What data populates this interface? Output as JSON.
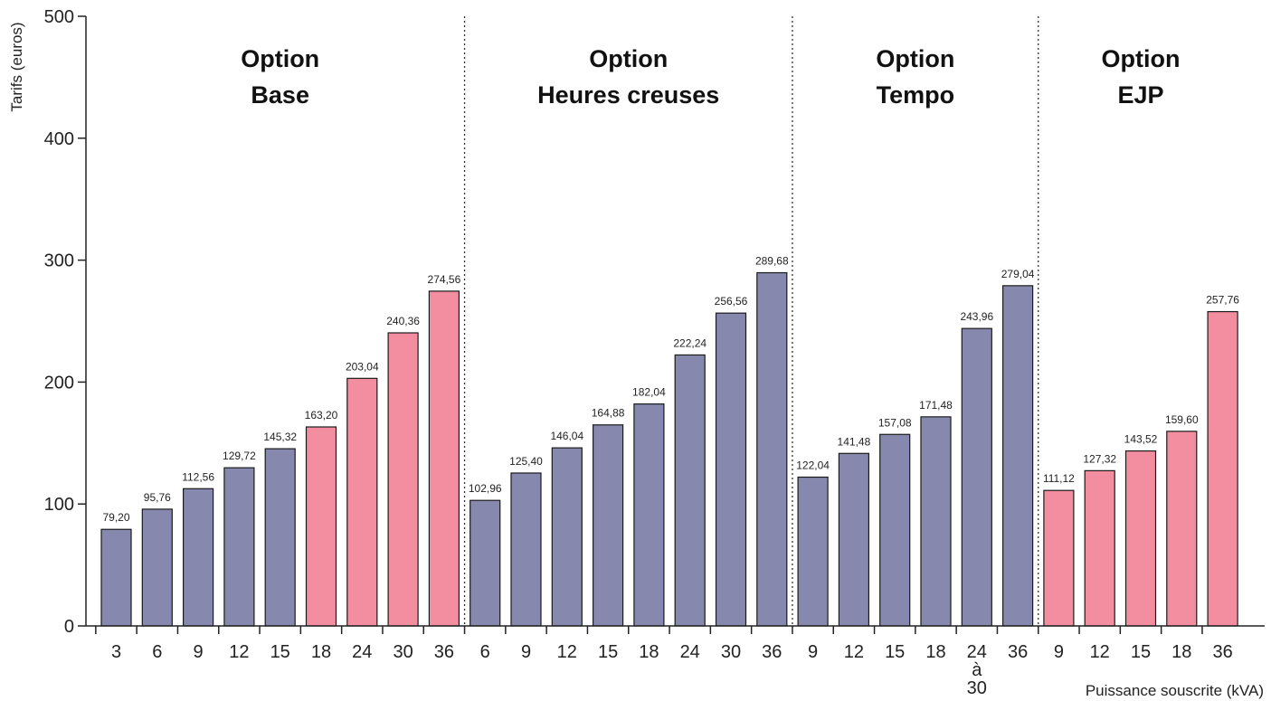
{
  "chart_data": {
    "type": "bar",
    "ylabel": "Tarifs (euros)",
    "xlabel": "Puissance souscrite (kVA)",
    "ylim": [
      0,
      500
    ],
    "yticks": [
      0,
      100,
      200,
      300,
      400,
      500
    ],
    "colors": {
      "blue": "#8689ad",
      "pink": "#f28ea0"
    },
    "groups": [
      {
        "title_line1": "Option",
        "title_line2": "Base",
        "bars": [
          {
            "label": "3",
            "value": 79.2,
            "value_label": "79,20",
            "color": "blue"
          },
          {
            "label": "6",
            "value": 95.76,
            "value_label": "95,76",
            "color": "blue"
          },
          {
            "label": "9",
            "value": 112.56,
            "value_label": "112,56",
            "color": "blue"
          },
          {
            "label": "12",
            "value": 129.72,
            "value_label": "129,72",
            "color": "blue"
          },
          {
            "label": "15",
            "value": 145.32,
            "value_label": "145,32",
            "color": "blue"
          },
          {
            "label": "18",
            "value": 163.2,
            "value_label": "163,20",
            "color": "pink"
          },
          {
            "label": "24",
            "value": 203.04,
            "value_label": "203,04",
            "color": "pink"
          },
          {
            "label": "30",
            "value": 240.36,
            "value_label": "240,36",
            "color": "pink"
          },
          {
            "label": "36",
            "value": 274.56,
            "value_label": "274,56",
            "color": "pink"
          }
        ]
      },
      {
        "title_line1": "Option",
        "title_line2": "Heures creuses",
        "bars": [
          {
            "label": "6",
            "value": 102.96,
            "value_label": "102,96",
            "color": "blue"
          },
          {
            "label": "9",
            "value": 125.4,
            "value_label": "125,40",
            "color": "blue"
          },
          {
            "label": "12",
            "value": 146.04,
            "value_label": "146,04",
            "color": "blue"
          },
          {
            "label": "15",
            "value": 164.88,
            "value_label": "164,88",
            "color": "blue"
          },
          {
            "label": "18",
            "value": 182.04,
            "value_label": "182,04",
            "color": "blue"
          },
          {
            "label": "24",
            "value": 222.24,
            "value_label": "222,24",
            "color": "blue"
          },
          {
            "label": "30",
            "value": 256.56,
            "value_label": "256,56",
            "color": "blue"
          },
          {
            "label": "36",
            "value": 289.68,
            "value_label": "289,68",
            "color": "blue"
          }
        ]
      },
      {
        "title_line1": "Option",
        "title_line2": "Tempo",
        "bars": [
          {
            "label": "9",
            "value": 122.04,
            "value_label": "122,04",
            "color": "blue"
          },
          {
            "label": "12",
            "value": 141.48,
            "value_label": "141,48",
            "color": "blue"
          },
          {
            "label": "15",
            "value": 157.08,
            "value_label": "157,08",
            "color": "blue"
          },
          {
            "label": "18",
            "value": 171.48,
            "value_label": "171,48",
            "color": "blue"
          },
          {
            "label": "24 à 30",
            "value": 243.96,
            "value_label": "243,96",
            "color": "blue",
            "label_lines": [
              "24",
              "à",
              "30"
            ]
          },
          {
            "label": "36",
            "value": 279.04,
            "value_label": "279,04",
            "color": "blue"
          }
        ]
      },
      {
        "title_line1": "Option",
        "title_line2": "EJP",
        "bars": [
          {
            "label": "9",
            "value": 111.12,
            "value_label": "111,12",
            "color": "pink"
          },
          {
            "label": "12",
            "value": 127.32,
            "value_label": "127,32",
            "color": "pink"
          },
          {
            "label": "15",
            "value": 143.52,
            "value_label": "143,52",
            "color": "pink"
          },
          {
            "label": "18",
            "value": 159.6,
            "value_label": "159,60",
            "color": "pink"
          },
          {
            "label": "36",
            "value": 257.76,
            "value_label": "257,76",
            "color": "pink"
          }
        ]
      }
    ]
  }
}
